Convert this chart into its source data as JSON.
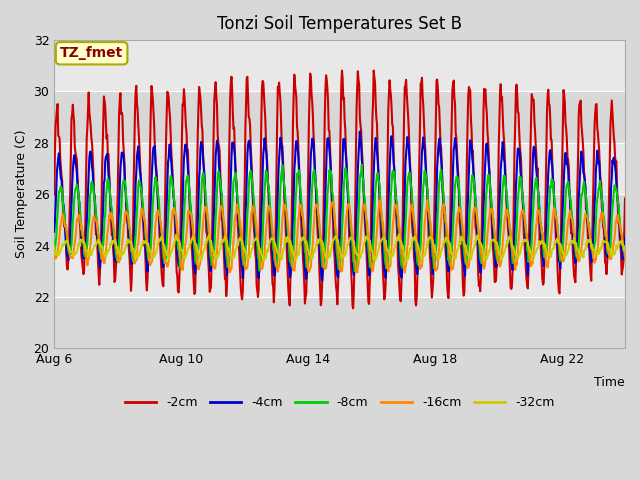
{
  "title": "Tonzi Soil Temperatures Set B",
  "xlabel": "Time",
  "ylabel": "Soil Temperature (C)",
  "ylim": [
    20,
    32
  ],
  "xlim": [
    0,
    18
  ],
  "xtick_labels": [
    "Aug 6",
    "Aug 10",
    "Aug 14",
    "Aug 18",
    "Aug 22"
  ],
  "xtick_positions": [
    0,
    4,
    8,
    12,
    16
  ],
  "ytick_labels": [
    "20",
    "22",
    "24",
    "26",
    "28",
    "30",
    "32"
  ],
  "ytick_positions": [
    20,
    22,
    24,
    26,
    28,
    30,
    32
  ],
  "series_colors": [
    "#cc0000",
    "#0000cc",
    "#00cc00",
    "#ff8800",
    "#cccc00"
  ],
  "series_labels": [
    "-2cm",
    "-4cm",
    "-8cm",
    "-16cm",
    "-32cm"
  ],
  "series_linewidths": [
    1.5,
    1.5,
    1.5,
    1.5,
    1.5
  ],
  "fig_bg_color": "#d8d8d8",
  "plot_bg_color": "#e0e0e0",
  "band_colors": [
    "#d8d8d8",
    "#e8e8e8"
  ],
  "annotation_text": "TZ_fmet",
  "annotation_color": "#8b0000",
  "annotation_bg": "#ffffcc",
  "annotation_border": "#aaaa00",
  "title_fontsize": 12,
  "axis_fontsize": 9,
  "legend_fontsize": 9
}
